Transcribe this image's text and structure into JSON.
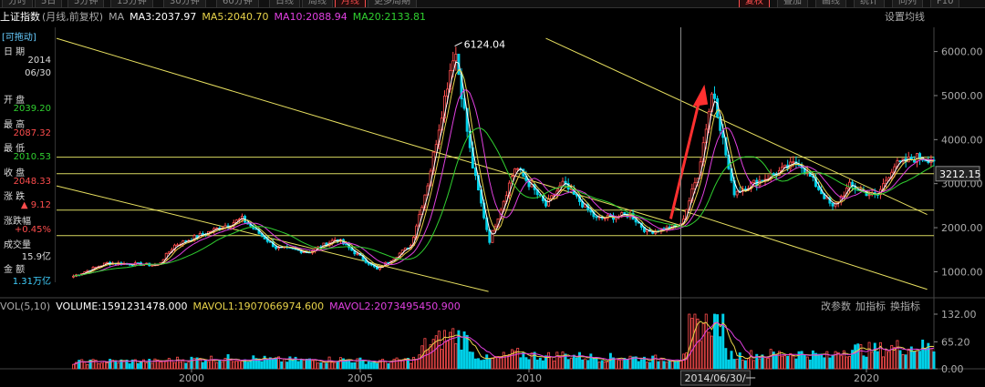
{
  "top_tabs": [
    "分时",
    "5日",
    "5分钟",
    "15分钟",
    "30分钟",
    "60分钟",
    "日线",
    "周线",
    "月线",
    "更多周期",
    "复权",
    "叠加",
    "画线",
    "统计",
    "同列",
    "F10"
  ],
  "active_tabs": [
    8,
    10
  ],
  "header": {
    "title": "上证指数",
    "subtitle": "(月线,前复权)",
    "ma_label": "MA",
    "ma": [
      {
        "label": "MA3:2037.97",
        "color": "#ffffff"
      },
      {
        "label": "MA5:2040.70",
        "color": "#e8d34a"
      },
      {
        "label": "MA10:2088.94",
        "color": "#e040e0"
      },
      {
        "label": "MA20:2133.81",
        "color": "#30d030"
      }
    ],
    "settings": "设置均线"
  },
  "sidebar": {
    "draggable": "[可拖动]",
    "rows": [
      {
        "label": "日 期",
        "value": "2014",
        "color": "#dddddd"
      },
      {
        "label": "",
        "value": "06/30",
        "color": "#dddddd"
      },
      {
        "label": "开 盘",
        "value": "2039.20",
        "color": "#30d030"
      },
      {
        "label": "最 高",
        "value": "2087.32",
        "color": "#ff4d4d"
      },
      {
        "label": "最 低",
        "value": "2010.53",
        "color": "#30d030"
      },
      {
        "label": "收 盘",
        "value": "2048.33",
        "color": "#ff4d4d"
      },
      {
        "label": "涨 跌",
        "value": "▲ 9.12",
        "color": "#ff4d4d"
      },
      {
        "label": "涨跌幅",
        "value": "+0.45%",
        "color": "#ff4d4d"
      },
      {
        "label": "成交量",
        "value": "15.9亿",
        "color": "#dddddd"
      },
      {
        "label": "金 额",
        "value": "1.31万亿",
        "color": "#40d0ff"
      }
    ]
  },
  "vol_header": {
    "label": "VOL(5,10)",
    "volume": "VOLUME:1591231478.000",
    "mavol1": "MAVOL1:1907066974.600",
    "mavol2": "MAVOL2:2073495450.900",
    "btn_params": "改参数",
    "btn_add": "加指标",
    "btn_swap": "换指标"
  },
  "crosshair_label": "2014/06/30/一",
  "peak_label": "6124.04",
  "colors": {
    "up": "#ff4d4d",
    "down": "#00d0e8",
    "ma3": "#ffffff",
    "ma5": "#e8d34a",
    "ma10": "#e040e0",
    "ma20": "#30d030",
    "trend": "#e8e060"
  },
  "chart_data": {
    "type": "candlestick",
    "title": "上证指数",
    "price_axis": {
      "ticks": [
        1000,
        2000,
        3000,
        4000,
        5000,
        6000
      ],
      "labels": [
        "1000.00",
        "2000.00",
        "3000.00",
        "4000.00",
        "5000.00",
        "6000.00"
      ],
      "ylim": [
        450,
        6550
      ]
    },
    "current_price": "3212.15",
    "volume_axis": {
      "labels": [
        "0.00",
        "65.20",
        "132.00"
      ],
      "values": [
        0,
        65.2,
        132
      ]
    },
    "x_axis": {
      "labels": [
        "2000",
        "2005",
        "2010",
        "2020"
      ],
      "years": [
        2000,
        2005,
        2010,
        2020
      ],
      "range": [
        1996,
        2022
      ]
    },
    "key_points": [
      {
        "date": 1996.5,
        "price": 900
      },
      {
        "date": 1997.5,
        "price": 1200
      },
      {
        "date": 1999.0,
        "price": 1150
      },
      {
        "date": 1999.5,
        "price": 1600
      },
      {
        "date": 2000.5,
        "price": 1900
      },
      {
        "date": 2001.5,
        "price": 2200
      },
      {
        "date": 2002.5,
        "price": 1550
      },
      {
        "date": 2003.5,
        "price": 1450
      },
      {
        "date": 2004.3,
        "price": 1750
      },
      {
        "date": 2005.5,
        "price": 1050
      },
      {
        "date": 2006.5,
        "price": 1600
      },
      {
        "date": 2007.0,
        "price": 3000
      },
      {
        "date": 2007.8,
        "price": 6124
      },
      {
        "date": 2008.3,
        "price": 3500
      },
      {
        "date": 2008.83,
        "price": 1700
      },
      {
        "date": 2009.6,
        "price": 3400
      },
      {
        "date": 2010.5,
        "price": 2500
      },
      {
        "date": 2011.0,
        "price": 3000
      },
      {
        "date": 2012.0,
        "price": 2200
      },
      {
        "date": 2013.0,
        "price": 2300
      },
      {
        "date": 2013.5,
        "price": 1900
      },
      {
        "date": 2014.5,
        "price": 2050
      },
      {
        "date": 2015.0,
        "price": 3200
      },
      {
        "date": 2015.45,
        "price": 5180
      },
      {
        "date": 2016.05,
        "price": 2800
      },
      {
        "date": 2017.5,
        "price": 3300
      },
      {
        "date": 2018.0,
        "price": 3500
      },
      {
        "date": 2019.0,
        "price": 2450
      },
      {
        "date": 2019.5,
        "price": 2950
      },
      {
        "date": 2020.3,
        "price": 2700
      },
      {
        "date": 2020.8,
        "price": 3400
      },
      {
        "date": 2021.5,
        "price": 3600
      },
      {
        "date": 2022.0,
        "price": 3560
      }
    ],
    "horizontal_levels": [
      3600,
      3225,
      2400,
      1820
    ],
    "trend_lines": [
      {
        "from": {
          "date": 1996.0,
          "price": 6300
        },
        "to": {
          "date": 2014.5,
          "price": 2050
        }
      },
      {
        "from": {
          "date": 1996.0,
          "price": 2950
        },
        "to": {
          "date": 2008.8,
          "price": 550
        }
      },
      {
        "from": {
          "date": 2010.5,
          "price": 6300
        },
        "to": {
          "date": 2021.8,
          "price": 2300
        }
      },
      {
        "from": {
          "date": 2014.3,
          "price": 2450
        },
        "to": {
          "date": 2021.8,
          "price": 600
        }
      }
    ]
  }
}
